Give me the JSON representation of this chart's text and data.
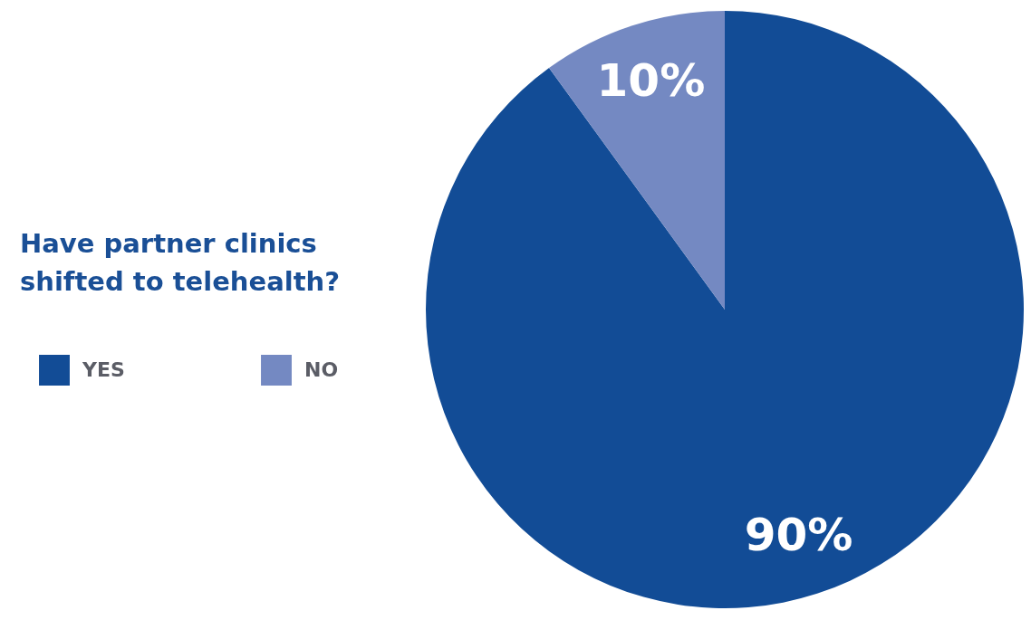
{
  "chart_data": {
    "type": "pie",
    "title": "Have partner clinics shifted to telehealth?",
    "categories": [
      "YES",
      "NO"
    ],
    "values": [
      90,
      10
    ],
    "colors": [
      "#124c96",
      "#7489c2"
    ],
    "value_labels": [
      "90%",
      "10%"
    ],
    "legend": "left"
  }
}
